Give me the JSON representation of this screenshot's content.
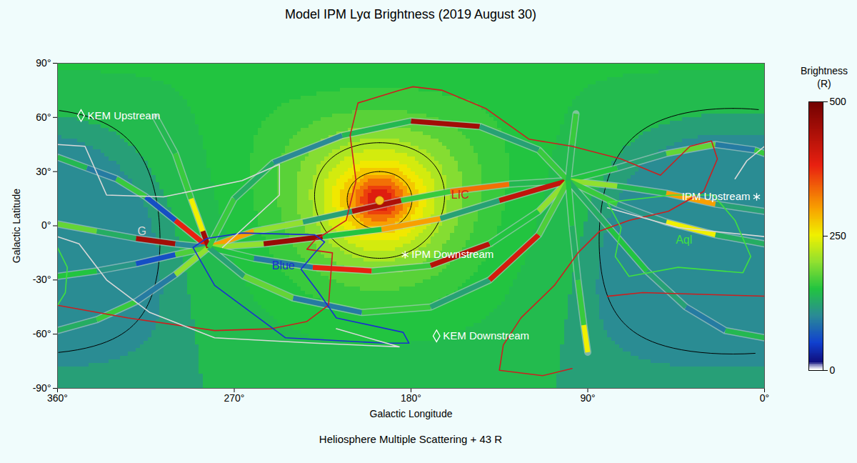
{
  "chart_data": {
    "type": "map",
    "title": "Model IPM Lyα Brightness (2019 August 30)",
    "x_label": "Galactic Longitude",
    "y_label": "Galactic Latitude",
    "caption": "Heliosphere Multiple Scattering + 43 R",
    "xlim": [
      360,
      0
    ],
    "ylim": [
      -90,
      90
    ],
    "xticks": [
      {
        "value": 360,
        "label": "360°"
      },
      {
        "value": 270,
        "label": "270°"
      },
      {
        "value": 180,
        "label": "180°"
      },
      {
        "value": 90,
        "label": "90°"
      },
      {
        "value": 0,
        "label": "0°"
      }
    ],
    "yticks": [
      {
        "value": -90,
        "label": "-90°"
      },
      {
        "value": -60,
        "label": "-60°"
      },
      {
        "value": -30,
        "label": "-30°"
      },
      {
        "value": 0,
        "label": "0°"
      },
      {
        "value": 30,
        "label": "30°"
      },
      {
        "value": 60,
        "label": "60°"
      },
      {
        "value": 90,
        "label": "90°"
      }
    ],
    "grid": false,
    "colorbar": {
      "title": "Brightness (R)",
      "range": [
        0,
        500
      ],
      "ticks": [
        0,
        250,
        500
      ],
      "stops": [
        0,
        15,
        50,
        100,
        150,
        200,
        250,
        300,
        380,
        500
      ],
      "colors": [
        "#ffffff",
        "#101080",
        "#1040d0",
        "#2a8a96",
        "#22c440",
        "#90e030",
        "#f0f000",
        "#f8a000",
        "#e82010",
        "#700000"
      ]
    },
    "center_marker": {
      "position": [
        196,
        14
      ],
      "color": "#f4c01c"
    },
    "background": {
      "rings": [
        {
          "radius": 3,
          "brightness": 410
        },
        {
          "radius": 6,
          "brightness": 390
        },
        {
          "radius": 9,
          "brightness": 360
        },
        {
          "radius": 12,
          "brightness": 330
        },
        {
          "radius": 15,
          "brightness": 300
        },
        {
          "radius": 19,
          "brightness": 275
        },
        {
          "radius": 23,
          "brightness": 255
        },
        {
          "radius": 28,
          "brightness": 235
        },
        {
          "radius": 34,
          "brightness": 215
        },
        {
          "radius": 41,
          "brightness": 195
        },
        {
          "radius": 50,
          "brightness": 175
        },
        {
          "radius": 62,
          "brightness": 160
        },
        {
          "radius": 80,
          "brightness": 150
        },
        {
          "radius": 104,
          "brightness": 142
        },
        {
          "radius": 115,
          "brightness": 118
        },
        {
          "radius": 180,
          "brightness": 102
        }
      ]
    },
    "contours": {
      "color": "#000000",
      "circles": [
        {
          "center": [
            196,
            14
          ],
          "radius": 16
        },
        {
          "center": [
            196,
            14
          ],
          "radius": 32
        },
        {
          "center": [
            16,
            -3
          ],
          "radius": 68
        }
      ]
    },
    "tracks": [
      [
        [
          360,
          38,
          140
        ],
        [
          345,
          32,
          90
        ],
        [
          330,
          26,
          160
        ],
        [
          315,
          16,
          60
        ],
        [
          300,
          3,
          380
        ],
        [
          283,
          -12,
          250
        ]
      ],
      [
        [
          360,
          1,
          180
        ],
        [
          340,
          -3,
          130
        ],
        [
          320,
          -7,
          450
        ],
        [
          300,
          -10,
          100
        ],
        [
          283,
          -12,
          200
        ]
      ],
      [
        [
          360,
          -28,
          150
        ],
        [
          340,
          -25,
          110
        ],
        [
          320,
          -21,
          60
        ],
        [
          300,
          -16,
          170
        ],
        [
          283,
          -12,
          300
        ]
      ],
      [
        [
          360,
          -58,
          130
        ],
        [
          340,
          -52,
          160
        ],
        [
          320,
          -42,
          90
        ],
        [
          300,
          -27,
          200
        ],
        [
          283,
          -12,
          350
        ]
      ],
      [
        [
          310,
          60,
          140
        ],
        [
          300,
          40,
          160
        ],
        [
          292,
          15,
          250
        ],
        [
          286,
          -3,
          450
        ],
        [
          283,
          -12,
          200
        ]
      ],
      [
        [
          283,
          -12,
          300
        ],
        [
          260,
          -3,
          200
        ],
        [
          235,
          2,
          120
        ],
        [
          210,
          8,
          440
        ],
        [
          185,
          14,
          160
        ],
        [
          160,
          19,
          330
        ],
        [
          130,
          23,
          140
        ],
        [
          100,
          25,
          200
        ]
      ],
      [
        [
          283,
          -12,
          200
        ],
        [
          255,
          -10,
          460
        ],
        [
          225,
          -6,
          150
        ],
        [
          195,
          -2,
          300
        ],
        [
          165,
          4,
          120
        ],
        [
          135,
          14,
          420
        ],
        [
          100,
          25,
          170
        ]
      ],
      [
        [
          283,
          -12,
          150
        ],
        [
          260,
          -18,
          90
        ],
        [
          230,
          -23,
          380
        ],
        [
          200,
          -25,
          160
        ],
        [
          170,
          -22,
          430
        ],
        [
          140,
          -10,
          150
        ],
        [
          115,
          8,
          200
        ],
        [
          100,
          25,
          140
        ]
      ],
      [
        [
          283,
          -12,
          120
        ],
        [
          265,
          -28,
          180
        ],
        [
          240,
          -40,
          90
        ],
        [
          205,
          -48,
          160
        ],
        [
          170,
          -45,
          120
        ],
        [
          140,
          -30,
          400
        ],
        [
          115,
          -5,
          170
        ],
        [
          100,
          25,
          130
        ]
      ],
      [
        [
          283,
          -12,
          160
        ],
        [
          270,
          15,
          130
        ],
        [
          250,
          35,
          100
        ],
        [
          215,
          50,
          140
        ],
        [
          180,
          58,
          450
        ],
        [
          145,
          55,
          120
        ],
        [
          115,
          42,
          160
        ],
        [
          100,
          25,
          210
        ]
      ],
      [
        [
          100,
          25,
          150
        ],
        [
          75,
          32,
          120
        ],
        [
          50,
          40,
          180
        ],
        [
          25,
          45,
          90
        ],
        [
          5,
          42,
          160
        ],
        [
          0,
          40,
          150
        ]
      ],
      [
        [
          100,
          25,
          200
        ],
        [
          75,
          22,
          140
        ],
        [
          50,
          18,
          300
        ],
        [
          25,
          12,
          120
        ],
        [
          0,
          8,
          170
        ]
      ],
      [
        [
          100,
          25,
          160
        ],
        [
          75,
          12,
          110
        ],
        [
          50,
          2,
          250
        ],
        [
          25,
          -5,
          130
        ],
        [
          0,
          -10,
          150
        ]
      ],
      [
        [
          100,
          25,
          130
        ],
        [
          80,
          0,
          150
        ],
        [
          60,
          -25,
          120
        ],
        [
          40,
          -45,
          90
        ],
        [
          20,
          -58,
          140
        ],
        [
          0,
          -62,
          160
        ]
      ],
      [
        [
          100,
          25,
          140
        ],
        [
          98,
          45,
          160
        ],
        [
          96,
          62,
          40
        ]
      ],
      [
        [
          100,
          25,
          150
        ],
        [
          98,
          0,
          130
        ],
        [
          95,
          -30,
          160
        ],
        [
          92,
          -55,
          250
        ],
        [
          90,
          -70,
          140
        ]
      ]
    ],
    "regions": [
      {
        "name": "LIC",
        "color": "#cc1f1f",
        "label_at": [
          155,
          17
        ],
        "lines": [
          [
            [
              360,
              -44
            ],
            [
              324,
              -51
            ],
            [
              280,
              -58
            ],
            [
              251,
              -57
            ],
            [
              233,
              -53
            ],
            [
              222,
              -44
            ],
            [
              220,
              -15
            ],
            [
              233,
              -13
            ],
            [
              229,
              -8
            ],
            [
              213,
              3
            ],
            [
              208,
              25
            ],
            [
              211,
              50
            ],
            [
              207,
              68
            ],
            [
              186,
              75
            ],
            [
              179,
              77
            ],
            [
              164,
              75
            ],
            [
              142,
              65
            ],
            [
              120,
              48
            ],
            [
              98,
              44
            ],
            [
              73,
              37
            ],
            [
              53,
              28
            ],
            [
              38,
              44
            ],
            [
              27,
              47
            ],
            [
              24,
              37
            ],
            [
              31,
              19
            ],
            [
              49,
              8
            ],
            [
              69,
              3
            ],
            [
              84,
              -3
            ],
            [
              95,
              -15
            ],
            [
              107,
              -33
            ],
            [
              124,
              -51
            ],
            [
              133,
              -66
            ],
            [
              135,
              -80
            ],
            [
              113,
              -83
            ],
            [
              98,
              -79
            ]
          ],
          [
            [
              80,
              -39
            ],
            [
              62,
              -37
            ],
            [
              0,
              -39
            ]
          ]
        ]
      },
      {
        "name": "Blue",
        "color": "#1a2fd0",
        "label_at": [
          245,
          -22
        ],
        "lines": [
          [
            [
              291,
              -12
            ],
            [
              284,
              -7
            ],
            [
              266,
              -4
            ],
            [
              229,
              -5
            ],
            [
              224,
              -9
            ],
            [
              229,
              -15
            ],
            [
              236,
              -24
            ],
            [
              227,
              -37
            ],
            [
              218,
              -51
            ],
            [
              184,
              -59
            ],
            [
              181,
              -65
            ],
            [
              193,
              -65
            ],
            [
              244,
              -62
            ],
            [
              280,
              -33
            ],
            [
              291,
              -12
            ]
          ]
        ]
      },
      {
        "name": "G",
        "color": "#d8d8d8",
        "label_at": [
          317,
          -3
        ],
        "lines": [
          [
            [
              360,
              45
            ],
            [
              346,
              44
            ],
            [
              335,
              17
            ],
            [
              306,
              16
            ],
            [
              266,
              25
            ],
            [
              247,
              34
            ],
            [
              247,
              17
            ],
            [
              276,
              -12
            ]
          ],
          [
            [
              360,
              -6
            ],
            [
              349,
              -10
            ],
            [
              335,
              -30
            ],
            [
              313,
              -48
            ],
            [
              280,
              -62
            ],
            [
              229,
              -65
            ],
            [
              186,
              -67
            ],
            [
              218,
              -57
            ]
          ],
          [
            [
              0,
              44
            ],
            [
              9,
              36
            ],
            [
              15,
              26
            ]
          ],
          [
            [
              80,
              10
            ],
            [
              44,
              -1
            ],
            [
              0,
              -6
            ]
          ]
        ]
      },
      {
        "name": "Aql",
        "color": "#40e040",
        "label_at": [
          41,
          -8
        ],
        "lines": [
          [
            [
              80,
              13
            ],
            [
              47,
              17
            ],
            [
              26,
              17
            ],
            [
              15,
              3
            ],
            [
              7,
              -17
            ],
            [
              11,
              -26
            ],
            [
              44,
              -23
            ],
            [
              69,
              -28
            ],
            [
              76,
              -17
            ],
            [
              73,
              -1
            ],
            [
              80,
              13
            ]
          ],
          [
            [
              360,
              -12
            ],
            [
              355,
              -23
            ],
            [
              356,
              -37
            ],
            [
              360,
              -44
            ]
          ]
        ]
      }
    ],
    "markers": [
      {
        "name": "KEM Upstream",
        "marker": "diamond",
        "position": [
          348,
          61
        ]
      },
      {
        "name": "KEM Downstream",
        "marker": "diamond",
        "position": [
          167,
          -61
        ]
      },
      {
        "name": "IPM Upstream",
        "marker": "asterisk",
        "position": [
          4,
          16
        ]
      },
      {
        "name": "IPM Downstream",
        "marker": "asterisk",
        "position": [
          183,
          -16
        ]
      }
    ]
  }
}
